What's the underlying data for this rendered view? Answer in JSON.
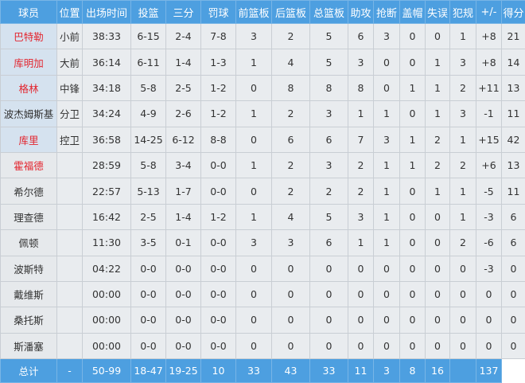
{
  "headers": [
    "球员",
    "位置",
    "出场时间",
    "投篮",
    "三分",
    "罚球",
    "前篮板",
    "后篮板",
    "总篮板",
    "助攻",
    "抢断",
    "盖帽",
    "失误",
    "犯规",
    "+/-",
    "得分"
  ],
  "colors": {
    "header_bg": "#4d9fe0",
    "highlight_name": "#e3262f",
    "starter_name_bg": "#d5e2ef"
  },
  "players": [
    {
      "name": "巴特勒",
      "red": true,
      "starter": true,
      "stats": [
        "小前",
        "38:33",
        "6-15",
        "2-4",
        "7-8",
        "3",
        "2",
        "5",
        "6",
        "3",
        "0",
        "0",
        "1",
        "+8",
        "21"
      ]
    },
    {
      "name": "库明加",
      "red": true,
      "starter": true,
      "stats": [
        "大前",
        "36:14",
        "6-11",
        "1-4",
        "1-3",
        "1",
        "4",
        "5",
        "3",
        "0",
        "0",
        "1",
        "3",
        "+8",
        "14"
      ]
    },
    {
      "name": "格林",
      "red": true,
      "starter": true,
      "stats": [
        "中锋",
        "34:18",
        "5-8",
        "2-5",
        "1-2",
        "0",
        "8",
        "8",
        "8",
        "0",
        "1",
        "1",
        "2",
        "+11",
        "13"
      ]
    },
    {
      "name": "波杰姆斯基",
      "red": false,
      "starter": true,
      "stats": [
        "分卫",
        "34:24",
        "4-9",
        "2-6",
        "1-2",
        "1",
        "2",
        "3",
        "1",
        "1",
        "0",
        "1",
        "3",
        "-1",
        "11"
      ]
    },
    {
      "name": "库里",
      "red": true,
      "starter": true,
      "stats": [
        "控卫",
        "36:58",
        "14-25",
        "6-12",
        "8-8",
        "0",
        "6",
        "6",
        "7",
        "3",
        "1",
        "2",
        "1",
        "+15",
        "42"
      ]
    },
    {
      "name": "霍福德",
      "red": true,
      "starter": false,
      "stats": [
        "",
        "28:59",
        "5-8",
        "3-4",
        "0-0",
        "1",
        "2",
        "3",
        "2",
        "1",
        "1",
        "2",
        "2",
        "+6",
        "13"
      ]
    },
    {
      "name": "希尔德",
      "red": false,
      "starter": false,
      "stats": [
        "",
        "22:57",
        "5-13",
        "1-7",
        "0-0",
        "0",
        "2",
        "2",
        "2",
        "1",
        "0",
        "1",
        "1",
        "-5",
        "11"
      ]
    },
    {
      "name": "理查德",
      "red": false,
      "starter": false,
      "stats": [
        "",
        "16:42",
        "2-5",
        "1-4",
        "1-2",
        "1",
        "4",
        "5",
        "3",
        "1",
        "0",
        "0",
        "1",
        "-3",
        "6"
      ]
    },
    {
      "name": "佩顿",
      "red": false,
      "starter": false,
      "stats": [
        "",
        "11:30",
        "3-5",
        "0-1",
        "0-0",
        "3",
        "3",
        "6",
        "1",
        "1",
        "0",
        "0",
        "2",
        "-6",
        "6"
      ]
    },
    {
      "name": "波斯特",
      "red": false,
      "starter": false,
      "stats": [
        "",
        "04:22",
        "0-0",
        "0-0",
        "0-0",
        "0",
        "0",
        "0",
        "0",
        "0",
        "0",
        "0",
        "0",
        "-3",
        "0"
      ]
    },
    {
      "name": "戴维斯",
      "red": false,
      "starter": false,
      "stats": [
        "",
        "00:00",
        "0-0",
        "0-0",
        "0-0",
        "0",
        "0",
        "0",
        "0",
        "0",
        "0",
        "0",
        "0",
        "0",
        "0"
      ]
    },
    {
      "name": "桑托斯",
      "red": false,
      "starter": false,
      "stats": [
        "",
        "00:00",
        "0-0",
        "0-0",
        "0-0",
        "0",
        "0",
        "0",
        "0",
        "0",
        "0",
        "0",
        "0",
        "0",
        "0"
      ]
    },
    {
      "name": "斯潘塞",
      "red": false,
      "starter": false,
      "stats": [
        "",
        "00:00",
        "0-0",
        "0-0",
        "0-0",
        "0",
        "0",
        "0",
        "0",
        "0",
        "0",
        "0",
        "0",
        "0",
        "0"
      ]
    }
  ],
  "total": {
    "label": "总计",
    "stats": [
      "",
      "-",
      "50-99",
      "18-47",
      "19-25",
      "10",
      "33",
      "43",
      "33",
      "11",
      "3",
      "8",
      "16",
      "",
      "137"
    ]
  }
}
